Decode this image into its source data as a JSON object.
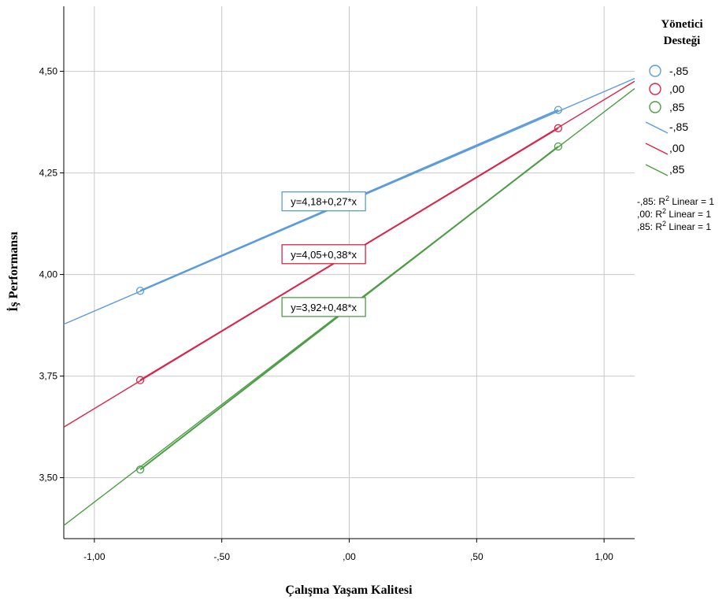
{
  "chart_data": {
    "type": "line",
    "xlabel": "Çalışma Yaşam Kalitesi",
    "ylabel": "İş Performansı",
    "xlim": [
      -1.12,
      1.12
    ],
    "ylim": [
      3.35,
      4.66
    ],
    "x_ticks": [
      {
        "value": -1.0,
        "label": "-1,00"
      },
      {
        "value": -0.5,
        "label": "-,50"
      },
      {
        "value": 0.0,
        "label": ",00"
      },
      {
        "value": 0.5,
        "label": ",50"
      },
      {
        "value": 1.0,
        "label": "1,00"
      }
    ],
    "y_ticks": [
      {
        "value": 3.5,
        "label": "3,50"
      },
      {
        "value": 3.75,
        "label": "3,75"
      },
      {
        "value": 4.0,
        "label": "4,00"
      },
      {
        "value": 4.25,
        "label": "4,25"
      },
      {
        "value": 4.5,
        "label": "4,50"
      }
    ],
    "grid": true,
    "legend": {
      "title_line1": "Yönetici",
      "title_line2": "Desteği",
      "position": "right",
      "marker_labels": [
        "-,85",
        ",00",
        ",85"
      ],
      "line_labels": [
        "-,85",
        ",00",
        ",85"
      ],
      "r2_lines": [
        "-,85: R",
        ",00: R",
        ",85: R"
      ],
      "r2_superscript": "2",
      "r2_suffix": " Linear = 1"
    },
    "series": [
      {
        "name": "-,85",
        "color": "#5b9bde",
        "intercept": 4.18,
        "slope": 0.27,
        "points": [
          {
            "x": -0.82,
            "y": 3.96
          },
          {
            "x": 0.82,
            "y": 4.405
          }
        ],
        "equation": "y=4,18+0,27*x",
        "equation_at": {
          "x": -0.1,
          "y": 4.18
        }
      },
      {
        "name": ",00",
        "color": "#d9254a",
        "intercept": 4.05,
        "slope": 0.38,
        "points": [
          {
            "x": -0.82,
            "y": 3.74
          },
          {
            "x": 0.82,
            "y": 4.36
          }
        ],
        "equation": "y=4,05+0,38*x",
        "equation_at": {
          "x": -0.1,
          "y": 4.05
        }
      },
      {
        "name": ",85",
        "color": "#4c9e45",
        "intercept": 3.92,
        "slope": 0.48,
        "points": [
          {
            "x": -0.82,
            "y": 3.52
          },
          {
            "x": 0.82,
            "y": 4.315
          }
        ],
        "equation": "y=3,92+0,48*x",
        "equation_at": {
          "x": -0.1,
          "y": 3.92
        }
      }
    ]
  }
}
